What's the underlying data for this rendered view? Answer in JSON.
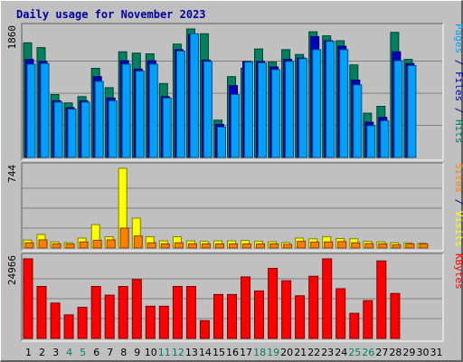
{
  "chart_data": {
    "title": "Daily usage for November 2023",
    "categories": [
      "1",
      "2",
      "3",
      "4",
      "5",
      "6",
      "7",
      "8",
      "9",
      "10",
      "11",
      "12",
      "13",
      "14",
      "15",
      "16",
      "17",
      "18",
      "19",
      "20",
      "21",
      "22",
      "23",
      "24",
      "25",
      "26",
      "27",
      "28",
      "29",
      "30",
      "31"
    ],
    "weekend_days": [
      "4",
      "5",
      "11",
      "12",
      "18",
      "19",
      "25",
      "26"
    ],
    "panels": [
      {
        "type": "bar",
        "ymax_label": "1860",
        "ymax": 1860,
        "side_labels": [
          {
            "text": "Pages",
            "color": "#00a0ff"
          },
          {
            "text": " / ",
            "color": "#000080"
          },
          {
            "text": "Files",
            "color": "#0000c0"
          },
          {
            "text": " / ",
            "color": "#000080"
          },
          {
            "text": "Hits",
            "color": "#008060"
          }
        ],
        "series": [
          {
            "name": "Hits",
            "color": "#008060",
            "values": [
              1660,
              1590,
              910,
              790,
              880,
              1290,
              1010,
              1530,
              1510,
              1500,
              1070,
              1640,
              1860,
              1790,
              540,
              1170,
              1290,
              1570,
              1380,
              1560,
              1490,
              1820,
              1760,
              1690,
              1340,
              640,
              740,
              1810,
              1420,
              null,
              null
            ]
          },
          {
            "name": "Files",
            "color": "#0000c0",
            "values": [
              1420,
              1390,
              820,
              720,
              820,
              1170,
              860,
              1400,
              1280,
              1400,
              880,
              1560,
              1780,
              1410,
              480,
              1040,
              1390,
              1390,
              1310,
              1420,
              1440,
              1750,
              1690,
              1610,
              1120,
              510,
              580,
              1530,
              1360,
              null,
              null
            ]
          },
          {
            "name": "Pages",
            "color": "#00a0ff",
            "values": [
              1350,
              1360,
              800,
              700,
              800,
              1100,
              820,
              1350,
              1250,
              1350,
              860,
              1540,
              1790,
              1390,
              440,
              910,
              1380,
              1370,
              1270,
              1390,
              1430,
              1560,
              1680,
              1560,
              1050,
              460,
              530,
              1400,
              1330,
              null,
              null
            ]
          }
        ]
      },
      {
        "type": "bar",
        "ymax_label": "744",
        "ymax": 744,
        "side_labels": [
          {
            "text": "Sites",
            "color": "#ff8000"
          },
          {
            "text": " / ",
            "color": "#000080"
          },
          {
            "text": "Visits",
            "color": "#ffff00"
          }
        ],
        "series": [
          {
            "name": "Visits",
            "color": "#ffff00",
            "values": [
              74,
              126,
              57,
              50,
              93,
              218,
              105,
              744,
              279,
              105,
              67,
              105,
              67,
              62,
              67,
              67,
              70,
              62,
              58,
              51,
              93,
              86,
              105,
              89,
              86,
              62,
              57,
              48,
              48,
              44,
              null
            ]
          },
          {
            "name": "Sites",
            "color": "#ff8000",
            "values": [
              48,
              76,
              38,
              36,
              57,
              72,
              76,
              186,
              112,
              48,
              38,
              48,
              38,
              38,
              38,
              38,
              38,
              38,
              38,
              33,
              62,
              55,
              57,
              60,
              48,
              41,
              38,
              29,
              38,
              38,
              null
            ]
          }
        ]
      },
      {
        "type": "bar",
        "ymax_label": "24966",
        "ymax": 24966,
        "side_labels": [
          {
            "text": "KBytes",
            "color": "#ff0000"
          }
        ],
        "series": [
          {
            "name": "KBytes",
            "color": "#ff0000",
            "values": [
              24966,
              16300,
              11100,
              7400,
              9800,
              16300,
              13600,
              16300,
              18500,
              10100,
              10100,
              16300,
              16300,
              5600,
              13800,
              13800,
              19300,
              14900,
              22000,
              18100,
              13400,
              19500,
              24966,
              15600,
              7900,
              11900,
              24300,
              14100,
              null,
              null,
              null
            ]
          }
        ]
      }
    ]
  }
}
